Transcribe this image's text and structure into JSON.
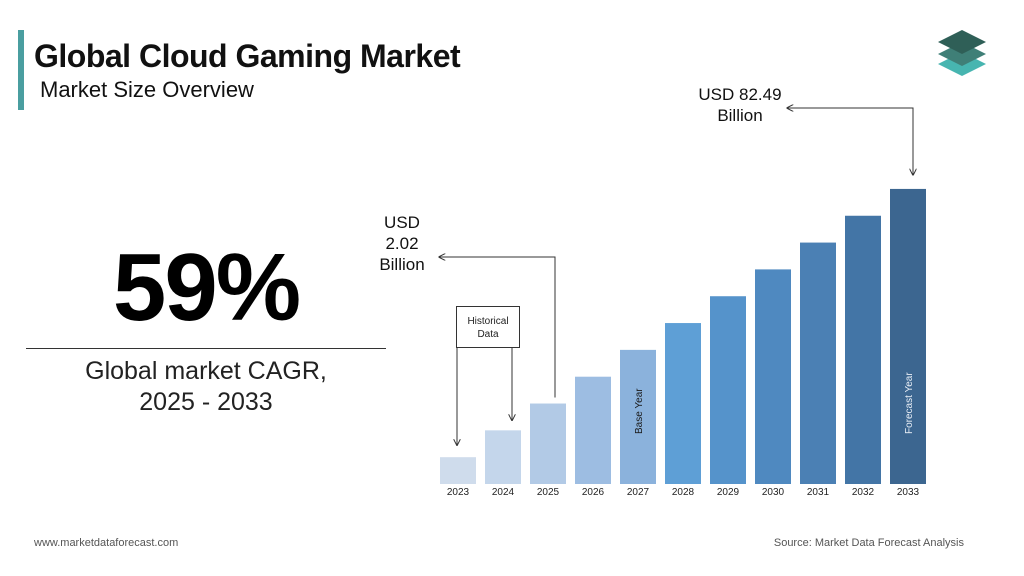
{
  "header": {
    "title": "Global Cloud Gaming Market",
    "subtitle": "Market Size Overview"
  },
  "cagr": {
    "value": "59%",
    "label": "Global market CAGR,\n2025 - 2033"
  },
  "annotations": {
    "start_value": "USD\n2.02\nBillion",
    "end_value": "USD 82.49\nBillion",
    "historical_box": "Historical\nData"
  },
  "chart_data": {
    "type": "bar",
    "title": "",
    "xlabel": "",
    "ylabel": "",
    "categories": [
      "2023",
      "2024",
      "2025",
      "2026",
      "2027",
      "2028",
      "2029",
      "2030",
      "2031",
      "2032",
      "2033"
    ],
    "values": [
      1,
      2,
      3,
      4,
      5,
      6,
      7,
      8,
      9,
      10,
      11
    ],
    "ylim": [
      0,
      12
    ],
    "bar_labels": {
      "2027": "Base Year",
      "2033": "Forecast Year"
    },
    "colors": [
      "#cfdcec",
      "#c4d6eb",
      "#b2cae6",
      "#9dbde2",
      "#8bb2dc",
      "#5e9fd6",
      "#5593cb",
      "#4f89c0",
      "#4b80b4",
      "#4375a6",
      "#3c6690"
    ],
    "grid": false,
    "legend": "none"
  },
  "logo": {
    "icon": "stacked-layers-icon",
    "colors": [
      "#2f5f57",
      "#3f7f77",
      "#47b5b0"
    ]
  },
  "footer": {
    "website": "www.marketdataforecast.com",
    "source": "Source: Market Data Forecast Analysis"
  }
}
